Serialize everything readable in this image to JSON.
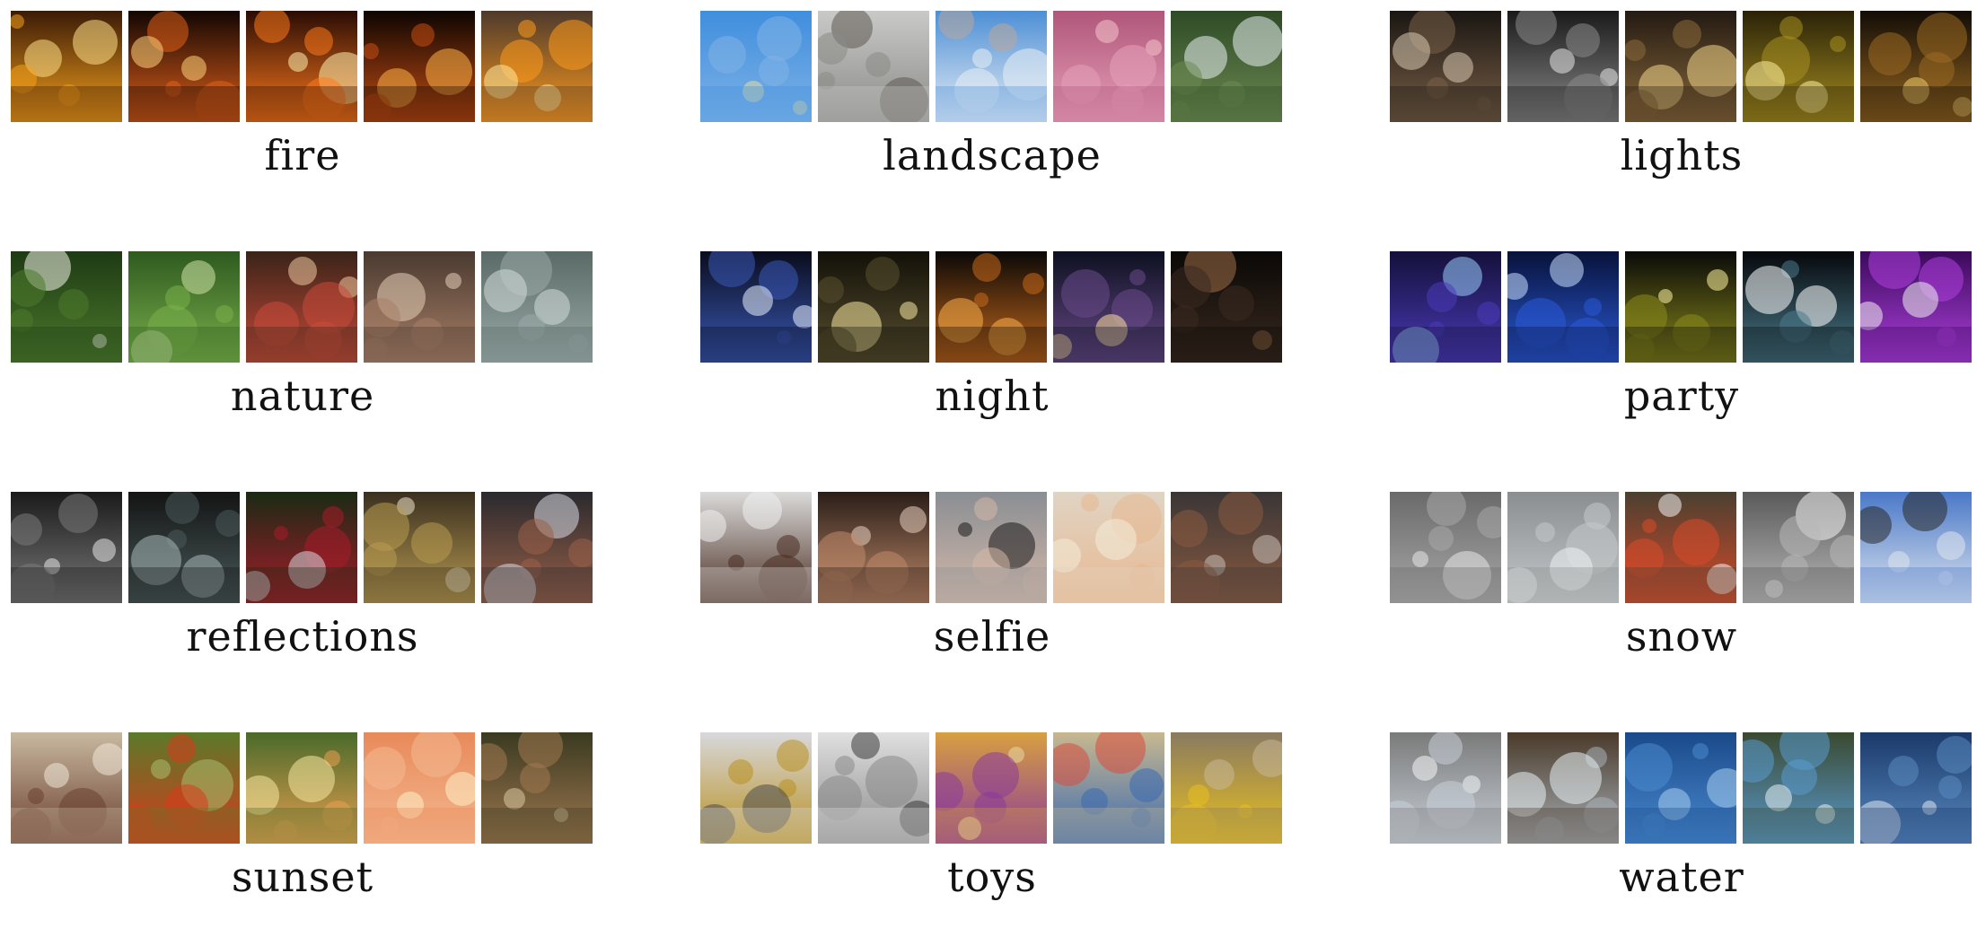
{
  "categories": [
    {
      "label": "fire",
      "thumbs": [
        {
          "icon": "flames-with-person",
          "colors": [
            "#3b1a06",
            "#f6a21c",
            "#ffe28a"
          ]
        },
        {
          "icon": "flames",
          "colors": [
            "#120602",
            "#e2601a",
            "#ffd27a"
          ]
        },
        {
          "icon": "campfire-logs",
          "colors": [
            "#2a0c04",
            "#ff7a1c",
            "#fff0b0"
          ]
        },
        {
          "icon": "flames-dark",
          "colors": [
            "#0d0502",
            "#c94e12",
            "#ffb347"
          ]
        },
        {
          "icon": "firepit",
          "colors": [
            "#4d3a2c",
            "#ff9a1c",
            "#ffe9a0"
          ]
        }
      ]
    },
    {
      "label": "landscape",
      "thumbs": [
        {
          "icon": "blue-sky-flowers",
          "colors": [
            "#3f8ede",
            "#7fb2e6",
            "#e6dca0"
          ]
        },
        {
          "icon": "pier-walkway",
          "colors": [
            "#c9c9c9",
            "#8a8a86",
            "#5e5a52"
          ]
        },
        {
          "icon": "boardwalk-clouds",
          "colors": [
            "#4d8fd6",
            "#e8eef4",
            "#b9a79a"
          ]
        },
        {
          "icon": "pink-canyon",
          "colors": [
            "#b0567a",
            "#e6a0b8",
            "#f4c4cc"
          ]
        },
        {
          "icon": "waterfall",
          "colors": [
            "#2f4a26",
            "#6d8a52",
            "#e8f0f2"
          ]
        }
      ]
    },
    {
      "label": "lights",
      "thumbs": [
        {
          "icon": "chandelier-mannequin",
          "colors": [
            "#1a1612",
            "#7a6048",
            "#d8c8b0"
          ]
        },
        {
          "icon": "chandelier-bw",
          "colors": [
            "#1a1a1a",
            "#8a8a8a",
            "#e8e8e8"
          ]
        },
        {
          "icon": "pendant-bulbs",
          "colors": [
            "#241a12",
            "#8a6a3c",
            "#f2d58a"
          ]
        },
        {
          "icon": "fairy-lights",
          "colors": [
            "#2a2208",
            "#a89020",
            "#fff0a0"
          ]
        },
        {
          "icon": "lantern",
          "colors": [
            "#120c06",
            "#9a6a22",
            "#f6d070"
          ]
        }
      ]
    },
    {
      "label": "nature",
      "thumbs": [
        {
          "icon": "water-lily",
          "colors": [
            "#1e3a14",
            "#4c7a2c",
            "#f4f4ea"
          ]
        },
        {
          "icon": "palm-fronds",
          "colors": [
            "#2e5a20",
            "#7ab04a",
            "#cfe6a8"
          ]
        },
        {
          "icon": "flower-bouquet",
          "colors": [
            "#3a2418",
            "#c84a3a",
            "#f0c8a0"
          ]
        },
        {
          "icon": "mushrooms",
          "colors": [
            "#4a3a30",
            "#a88068",
            "#e6cfb8"
          ]
        },
        {
          "icon": "succulent",
          "colors": [
            "#5a6a66",
            "#9aaaa8",
            "#d2dcda"
          ]
        }
      ]
    },
    {
      "label": "night",
      "thumbs": [
        {
          "icon": "castle-fireworks",
          "colors": [
            "#0a0c1c",
            "#3a5ab8",
            "#e8f0ff"
          ]
        },
        {
          "icon": "lit-street",
          "colors": [
            "#121008",
            "#5a5030",
            "#f8e8a0"
          ]
        },
        {
          "icon": "star-lanterns",
          "colors": [
            "#0a0806",
            "#c86a1c",
            "#ffb14a"
          ]
        },
        {
          "icon": "city-street-lights",
          "colors": [
            "#0c1020",
            "#6a4a8a",
            "#ffe0a0"
          ]
        },
        {
          "icon": "silhouette-wall",
          "colors": [
            "#0a0806",
            "#3a2a20",
            "#a07048"
          ]
        }
      ]
    },
    {
      "label": "party",
      "thumbs": [
        {
          "icon": "concert-stage",
          "colors": [
            "#14103a",
            "#4a3ab8",
            "#9ad0ff"
          ]
        },
        {
          "icon": "stage-blue-beams",
          "colors": [
            "#08123a",
            "#2a5ad8",
            "#c8e0ff"
          ]
        },
        {
          "icon": "stage-yellow",
          "colors": [
            "#0a0a08",
            "#8a8a1c",
            "#fff4a0"
          ]
        },
        {
          "icon": "light-beams",
          "colors": [
            "#06080c",
            "#4a7a8a",
            "#ffffff"
          ]
        },
        {
          "icon": "dancer-purple",
          "colors": [
            "#3a0a5a",
            "#b040e0",
            "#f0f0f0"
          ]
        }
      ]
    },
    {
      "label": "reflections",
      "thumbs": [
        {
          "icon": "window-grid-bw",
          "colors": [
            "#1a1a1a",
            "#7a7a7a",
            "#e6e6e6"
          ]
        },
        {
          "icon": "mirror-interior",
          "colors": [
            "#141414",
            "#4a5a5a",
            "#a8b8b8"
          ]
        },
        {
          "icon": "ornaments",
          "colors": [
            "#1a2a14",
            "#a81c2a",
            "#d8d8e0"
          ]
        },
        {
          "icon": "gold-sphere",
          "colors": [
            "#3a3020",
            "#b89a50",
            "#f0e6c8"
          ]
        },
        {
          "icon": "shop-window",
          "colors": [
            "#2a2a2e",
            "#9a6048",
            "#d8dce6"
          ]
        }
      ]
    },
    {
      "label": "selfie",
      "thumbs": [
        {
          "icon": "portrait-man",
          "colors": [
            "#dadada",
            "#4a2e22",
            "#f0f0f0"
          ]
        },
        {
          "icon": "portrait-couple",
          "colors": [
            "#2a1e18",
            "#c08a6a",
            "#e8d0c0"
          ]
        },
        {
          "icon": "portrait-sunglasses",
          "colors": [
            "#8a8e94",
            "#d4b8a8",
            "#1a1a1a"
          ]
        },
        {
          "icon": "portrait-child",
          "colors": [
            "#e0d4c4",
            "#e8b890",
            "#f4ecd8"
          ]
        },
        {
          "icon": "portrait-woman",
          "colors": [
            "#3a3636",
            "#8a5a40",
            "#c8c0b8"
          ]
        }
      ]
    },
    {
      "label": "snow",
      "thumbs": [
        {
          "icon": "snowy-trees",
          "colors": [
            "#6a6a6a",
            "#a8a8a8",
            "#e8e8e8"
          ]
        },
        {
          "icon": "snowy-path",
          "colors": [
            "#8a8e90",
            "#c4c8ca",
            "#f0f2f4"
          ]
        },
        {
          "icon": "kid-sled",
          "colors": [
            "#4a4030",
            "#d84a2a",
            "#f4f4f4"
          ]
        },
        {
          "icon": "snow-branches",
          "colors": [
            "#5a5a5a",
            "#b8b8b8",
            "#f4f4f4"
          ]
        },
        {
          "icon": "skier",
          "colors": [
            "#4a78c8",
            "#dfe6ee",
            "#2a2a2a"
          ]
        }
      ]
    },
    {
      "label": "sunset",
      "thumbs": [
        {
          "icon": "branch-on-lake",
          "colors": [
            "#c8b8a0",
            "#6a4030",
            "#f0e8d8"
          ]
        },
        {
          "icon": "red-poppy",
          "colors": [
            "#5a7a2a",
            "#d83a1c",
            "#a8c070"
          ]
        },
        {
          "icon": "father-child",
          "colors": [
            "#4a6a2a",
            "#e8a050",
            "#f8e8a0"
          ]
        },
        {
          "icon": "sunset-sea",
          "colors": [
            "#e88a5a",
            "#f4b890",
            "#fff0c8"
          ]
        },
        {
          "icon": "dog-field",
          "colors": [
            "#3a3a20",
            "#a07850",
            "#d8c8a0"
          ]
        }
      ]
    },
    {
      "label": "toys",
      "thumbs": [
        {
          "icon": "robot-figure",
          "colors": [
            "#d8d8dc",
            "#b89020",
            "#4a4a4a"
          ]
        },
        {
          "icon": "robot-figures",
          "colors": [
            "#e0e0e0",
            "#8a8a8a",
            "#3a3a3a"
          ]
        },
        {
          "icon": "playset",
          "colors": [
            "#d8a040",
            "#8a3a9a",
            "#e8d8a0"
          ]
        },
        {
          "icon": "toy-house",
          "colors": [
            "#c8b890",
            "#3a6ab0",
            "#d84a3a"
          ]
        },
        {
          "icon": "toy-truck",
          "colors": [
            "#8a7a60",
            "#e8c020",
            "#c8b898"
          ]
        }
      ]
    },
    {
      "label": "water",
      "thumbs": [
        {
          "icon": "fountain-jets",
          "colors": [
            "#7a7a7a",
            "#c8d0d8",
            "#f4f6f8"
          ]
        },
        {
          "icon": "fountain-splash",
          "colors": [
            "#4a3a2a",
            "#a8b0b8",
            "#e8f0f4"
          ]
        },
        {
          "icon": "blue-water-reed",
          "colors": [
            "#1a4a8a",
            "#4a8ad0",
            "#a8d0f0"
          ]
        },
        {
          "icon": "pool-waterfall",
          "colors": [
            "#3a4a30",
            "#5a9ad0",
            "#e8f0f4"
          ]
        },
        {
          "icon": "ocean-wave",
          "colors": [
            "#1a3a6a",
            "#5a8ac0",
            "#e0e8f0"
          ]
        }
      ]
    }
  ]
}
